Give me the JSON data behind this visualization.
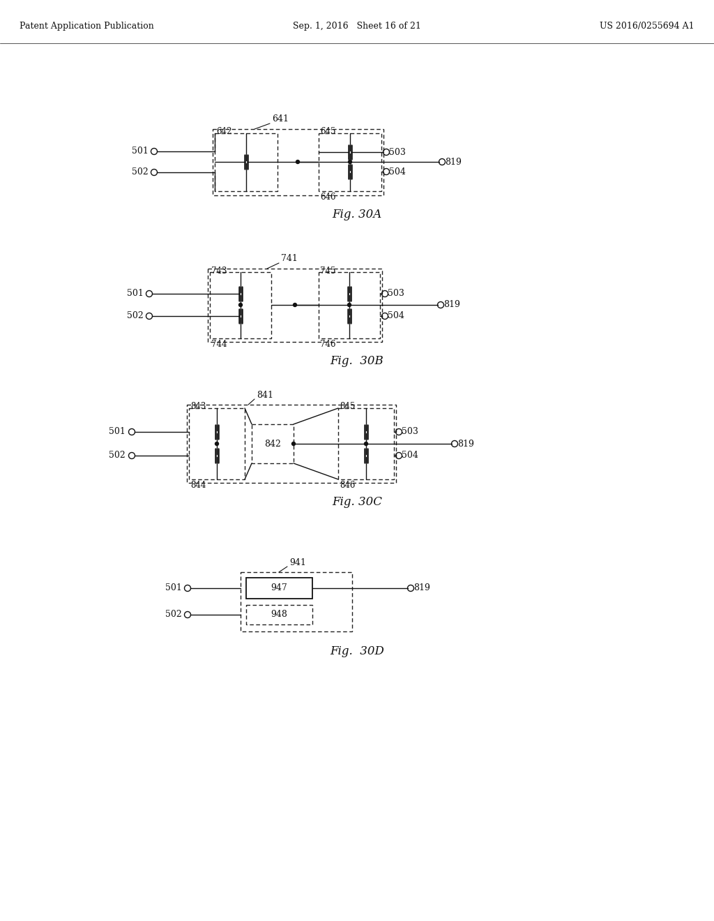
{
  "background": "#ffffff",
  "header_left": "Patent Application Publication",
  "header_mid": "Sep. 1, 2016   Sheet 16 of 21",
  "header_right": "US 2016/0255694 A1",
  "fig30A": {
    "label": "Fig. 30A",
    "outer_label": "641",
    "lb": "642",
    "rt": "645",
    "rb": "646",
    "p501": "501",
    "p502": "502",
    "p503": "503",
    "p504": "504",
    "p819": "819"
  },
  "fig30B": {
    "label": "Fig.  30B",
    "outer_label": "741",
    "lt": "743",
    "lb": "744",
    "rt": "745",
    "rb": "746",
    "p501": "501",
    "p502": "502",
    "p503": "503",
    "p504": "504",
    "p819": "819"
  },
  "fig30C": {
    "label": "Fig. 30C",
    "outer_label": "841",
    "lt": "843",
    "lb": "844",
    "mid": "842",
    "rt": "845",
    "rb": "846",
    "p501": "501",
    "p502": "502",
    "p503": "503",
    "p504": "504",
    "p819": "819"
  },
  "fig30D": {
    "label": "Fig.  30D",
    "outer_label": "941",
    "top_inner": "947",
    "bot_inner": "948",
    "p501": "501",
    "p502": "502",
    "p819": "819"
  }
}
